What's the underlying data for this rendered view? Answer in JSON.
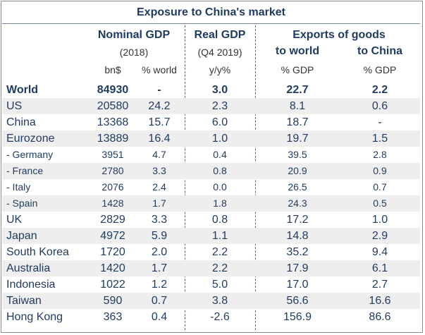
{
  "title": "Exposure to China's market",
  "headers": {
    "nominal_gdp": "Nominal GDP",
    "nominal_year": "(2018)",
    "nominal_unit1": "bn$",
    "nominal_unit2": "% world",
    "real_gdp": "Real GDP",
    "real_period": "(Q4 2019)",
    "real_unit": "y/y%",
    "exports": "Exports of goods",
    "to_world": "to world",
    "to_china": "to China",
    "unit_world": "% GDP",
    "unit_china": "% GDP"
  },
  "rows": [
    {
      "name": "World",
      "bn": "84930",
      "pct": "-",
      "real": "3.0",
      "world": "22.7",
      "china": "2.2"
    },
    {
      "name": "US",
      "bn": "20580",
      "pct": "24.2",
      "real": "2.3",
      "world": "8.1",
      "china": "0.6"
    },
    {
      "name": "China",
      "bn": "13368",
      "pct": "15.7",
      "real": "6.0",
      "world": "18.7",
      "china": "-"
    },
    {
      "name": "Eurozone",
      "bn": "13889",
      "pct": "16.4",
      "real": "1.0",
      "world": "19.7",
      "china": "1.5"
    },
    {
      "name": "- Germany",
      "bn": "3951",
      "pct": "4.7",
      "real": "0.4",
      "world": "39.5",
      "china": "2.8"
    },
    {
      "name": "- France",
      "bn": "2780",
      "pct": "3.3",
      "real": "0.8",
      "world": "20.9",
      "china": "0.9"
    },
    {
      "name": "- Italy",
      "bn": "2076",
      "pct": "2.4",
      "real": "0.0",
      "world": "26.5",
      "china": "0.7"
    },
    {
      "name": "- Spain",
      "bn": "1428",
      "pct": "1.7",
      "real": "1.8",
      "world": "24.3",
      "china": "0.5"
    },
    {
      "name": "UK",
      "bn": "2829",
      "pct": "3.3",
      "real": "0.8",
      "world": "17.2",
      "china": "1.0"
    },
    {
      "name": "Japan",
      "bn": "4972",
      "pct": "5.9",
      "real": "1.1",
      "world": "14.8",
      "china": "2.9"
    },
    {
      "name": "South Korea",
      "bn": "1720",
      "pct": "2.0",
      "real": "2.2",
      "world": "35.2",
      "china": "9.4"
    },
    {
      "name": "Australia",
      "bn": "1420",
      "pct": "1.7",
      "real": "2.2",
      "world": "17.9",
      "china": "6.1"
    },
    {
      "name": "Indonesia",
      "bn": "1022",
      "pct": "1.2",
      "real": "5.0",
      "world": "17.0",
      "china": "2.7"
    },
    {
      "name": "Taiwan",
      "bn": "590",
      "pct": "0.7",
      "real": "3.8",
      "world": "56.6",
      "china": "16.6"
    },
    {
      "name": "Hong Kong",
      "bn": "363",
      "pct": "0.4",
      "real": "-2.6",
      "world": "156.9",
      "china": "86.6"
    }
  ]
}
